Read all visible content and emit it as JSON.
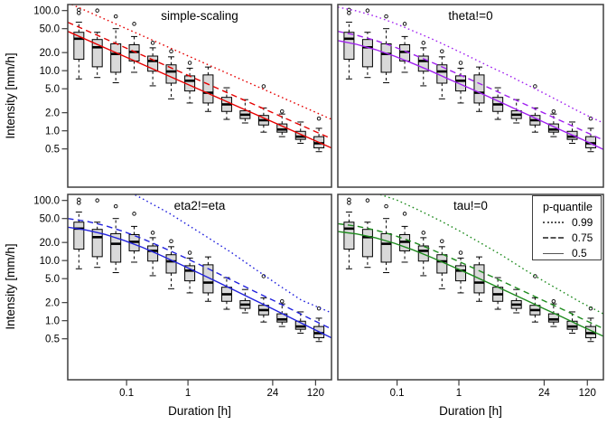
{
  "figure": {
    "background": "#ffffff",
    "frame_color": "#3f3f3f",
    "box_fill": "#d9d9d9",
    "box_stroke": "#000000",
    "legend_line_color": "#555555"
  },
  "axes": {
    "x_label": "Duration [h]",
    "y_label": "Intensity [mm/h]",
    "x_log": true,
    "y_log": true,
    "x_range": [
      0.011,
      218
    ],
    "y_top": 126,
    "x_ticks": [
      {
        "value": 0.1,
        "label": "0.1"
      },
      {
        "value": 1,
        "label": "1"
      },
      {
        "value": 24,
        "label": "24"
      },
      {
        "value": 120,
        "label": "120"
      }
    ],
    "y_ticks": [
      {
        "value": 100,
        "label": "100.0"
      },
      {
        "value": 50,
        "label": "50.0"
      },
      {
        "value": 20,
        "label": "20.0"
      },
      {
        "value": 10,
        "label": "10.0"
      },
      {
        "value": 5,
        "label": "5.0"
      },
      {
        "value": 2,
        "label": "2.0"
      },
      {
        "value": 1,
        "label": "1.0"
      },
      {
        "value": 0.5,
        "label": "0.5"
      }
    ]
  },
  "legend": {
    "title": "p-quantile",
    "entries": [
      {
        "style": "dotted",
        "label": "0.99"
      },
      {
        "style": "dashed",
        "label": "0.75"
      },
      {
        "style": "solid",
        "label": "0.5"
      }
    ]
  },
  "chart_data": {
    "type": "boxplot+line",
    "note": "Four panels share identical empirical boxplot data; each panel shows a different fitted quantile model (p = 0.99 dotted, 0.75 dashed, 0.5 solid).",
    "boxplots": [
      {
        "duration": 0.0167,
        "whisker_low": 7.3,
        "q1": 15.5,
        "median": 34,
        "q3": 43.5,
        "whisker_high": 64,
        "outliers": [
          103,
          91
        ]
      },
      {
        "duration": 0.0333,
        "whisker_low": 7.7,
        "q1": 11.6,
        "median": 24.5,
        "q3": 33,
        "whisker_high": 43.5,
        "outliers": [
          100
        ]
      },
      {
        "duration": 0.0667,
        "whisker_low": 6.3,
        "q1": 9.4,
        "median": 19,
        "q3": 28,
        "whisker_high": 50,
        "outliers": [
          80
        ]
      },
      {
        "duration": 0.133,
        "whisker_low": 9.4,
        "q1": 14.5,
        "median": 20.5,
        "q3": 27,
        "whisker_high": 37,
        "outliers": [
          60
        ]
      },
      {
        "duration": 0.267,
        "whisker_low": 5.6,
        "q1": 9.8,
        "median": 14.5,
        "q3": 17.5,
        "whisker_high": 24,
        "outliers": [
          29
        ]
      },
      {
        "duration": 0.533,
        "whisker_low": 3.4,
        "q1": 6.2,
        "median": 9.7,
        "q3": 12.5,
        "whisker_high": 17,
        "outliers": [
          21
        ]
      },
      {
        "duration": 1.07,
        "whisker_low": 2.9,
        "q1": 4.6,
        "median": 6.8,
        "q3": 8.2,
        "whisker_high": 11,
        "outliers": [
          13.5
        ]
      },
      {
        "duration": 2.13,
        "whisker_low": 2.1,
        "q1": 2.9,
        "median": 4.3,
        "q3": 8.5,
        "whisker_high": 11.5,
        "outliers": []
      },
      {
        "duration": 4.27,
        "whisker_low": 1.55,
        "q1": 2.1,
        "median": 2.75,
        "q3": 3.6,
        "whisker_high": 5.2,
        "outliers": []
      },
      {
        "duration": 8.53,
        "whisker_low": 1.35,
        "q1": 1.6,
        "median": 1.85,
        "q3": 2.15,
        "whisker_high": 3.3,
        "outliers": []
      },
      {
        "duration": 17.1,
        "whisker_low": 0.95,
        "q1": 1.25,
        "median": 1.5,
        "q3": 1.8,
        "whisker_high": 2.4,
        "outliers": [
          5.5
        ]
      },
      {
        "duration": 34.1,
        "whisker_low": 0.8,
        "q1": 0.95,
        "median": 1.05,
        "q3": 1.3,
        "whisker_high": 1.9,
        "outliers": [
          2.1
        ]
      },
      {
        "duration": 68.3,
        "whisker_low": 0.62,
        "q1": 0.72,
        "median": 0.8,
        "q3": 0.98,
        "whisker_high": 1.4,
        "outliers": []
      },
      {
        "duration": 136,
        "whisker_low": 0.45,
        "q1": 0.52,
        "median": 0.62,
        "q3": 0.8,
        "whisker_high": 1.1,
        "outliers": [
          1.6
        ]
      }
    ],
    "panels": [
      {
        "title": "simple-scaling",
        "color": "#e60000",
        "curves": [
          {
            "p": "0.99",
            "style": "dotted",
            "points": [
              [
                0.011,
                135
              ],
              [
                218,
                1.55
              ]
            ]
          },
          {
            "p": "0.75",
            "style": "dashed",
            "points": [
              [
                0.011,
                64
              ],
              [
                218,
                0.74
              ]
            ]
          },
          {
            "p": "0.5",
            "style": "solid",
            "points": [
              [
                0.011,
                45
              ],
              [
                218,
                0.52
              ]
            ]
          }
        ]
      },
      {
        "title": "theta!=0",
        "color": "#a020f0",
        "curves": [
          {
            "p": "0.99",
            "style": "dotted",
            "points": [
              [
                0.011,
                114
              ],
              [
                0.022,
                99
              ],
              [
                0.045,
                80
              ],
              [
                0.09,
                62
              ],
              [
                0.18,
                46
              ],
              [
                0.36,
                34
              ],
              [
                0.72,
                24.5
              ],
              [
                1.5,
                17
              ],
              [
                3,
                12
              ],
              [
                6,
                8.6
              ],
              [
                12,
                6.0
              ],
              [
                24,
                4.2
              ],
              [
                48,
                2.9
              ],
              [
                96,
                2.0
              ],
              [
                218,
                1.35
              ]
            ]
          },
          {
            "p": "0.75",
            "style": "dashed",
            "points": [
              [
                0.011,
                45
              ],
              [
                0.022,
                39
              ],
              [
                0.045,
                31.8
              ],
              [
                0.09,
                24.9
              ],
              [
                0.18,
                18.7
              ],
              [
                0.36,
                13.9
              ],
              [
                0.72,
                10.1
              ],
              [
                1.5,
                7.2
              ],
              [
                3,
                5.25
              ],
              [
                6,
                3.79
              ],
              [
                12,
                2.74
              ],
              [
                24,
                1.97
              ],
              [
                48,
                1.42
              ],
              [
                96,
                1.03
              ],
              [
                218,
                0.7
              ]
            ]
          },
          {
            "p": "0.5",
            "style": "solid",
            "points": [
              [
                0.011,
                31.7
              ],
              [
                0.022,
                27.5
              ],
              [
                0.045,
                22.4
              ],
              [
                0.09,
                17.5
              ],
              [
                0.18,
                13.2
              ],
              [
                0.36,
                9.8
              ],
              [
                0.72,
                7.1
              ],
              [
                1.5,
                5.1
              ],
              [
                3,
                3.7
              ],
              [
                6,
                2.67
              ],
              [
                12,
                1.93
              ],
              [
                24,
                1.39
              ],
              [
                48,
                1.0
              ],
              [
                96,
                0.73
              ],
              [
                218,
                0.49
              ]
            ]
          }
        ]
      },
      {
        "title": "eta2!=eta",
        "color": "#2222dd",
        "curves": [
          {
            "p": "0.99",
            "style": "dotted",
            "points": [
              [
                0.05,
                210
              ],
              [
                0.1,
                148
              ],
              [
                0.22,
                96
              ],
              [
                0.5,
                61
              ],
              [
                1,
                39
              ],
              [
                2,
                25
              ],
              [
                5,
                13.8
              ],
              [
                12,
                7.4
              ],
              [
                30,
                3.9
              ],
              [
                70,
                2.2
              ],
              [
                218,
                1.35
              ]
            ]
          },
          {
            "p": "0.75",
            "style": "dashed",
            "points": [
              [
                0.011,
                50
              ],
              [
                0.022,
                45
              ],
              [
                0.045,
                38
              ],
              [
                0.09,
                30.4
              ],
              [
                0.18,
                23.2
              ],
              [
                0.36,
                17.1
              ],
              [
                0.72,
                12.4
              ],
              [
                1.5,
                8.7
              ],
              [
                3,
                6.2
              ],
              [
                6,
                4.38
              ],
              [
                12,
                3.09
              ],
              [
                24,
                2.2
              ],
              [
                48,
                1.55
              ],
              [
                96,
                1.09
              ],
              [
                218,
                0.73
              ]
            ]
          },
          {
            "p": "0.5",
            "style": "solid",
            "points": [
              [
                0.011,
                35.8
              ],
              [
                0.022,
                32.2
              ],
              [
                0.045,
                27.2
              ],
              [
                0.09,
                21.7
              ],
              [
                0.18,
                16.6
              ],
              [
                0.36,
                12.2
              ],
              [
                0.72,
                8.84
              ],
              [
                1.5,
                6.2
              ],
              [
                3,
                4.41
              ],
              [
                6,
                3.13
              ],
              [
                12,
                2.21
              ],
              [
                24,
                1.57
              ],
              [
                48,
                1.11
              ],
              [
                96,
                0.78
              ],
              [
                218,
                0.52
              ]
            ]
          }
        ]
      },
      {
        "title": "tau!=0",
        "color": "#1e8b1e",
        "curves": [
          {
            "p": "0.99",
            "style": "dotted",
            "points": [
              [
                0.011,
                175
              ],
              [
                0.05,
                128
              ],
              [
                0.1,
                101
              ],
              [
                0.2,
                73
              ],
              [
                0.5,
                46
              ],
              [
                1,
                31.5
              ],
              [
                2,
                21
              ],
              [
                5,
                12.2
              ],
              [
                12,
                6.9
              ],
              [
                24,
                4.5
              ],
              [
                48,
                3.0
              ],
              [
                96,
                2.0
              ],
              [
                218,
                1.3
              ]
            ]
          },
          {
            "p": "0.75",
            "style": "dashed",
            "points": [
              [
                0.011,
                41
              ],
              [
                0.022,
                37.4
              ],
              [
                0.045,
                32.1
              ],
              [
                0.09,
                26.2
              ],
              [
                0.18,
                20.4
              ],
              [
                0.36,
                15.3
              ],
              [
                0.72,
                11.2
              ],
              [
                1.5,
                8.0
              ],
              [
                3,
                5.76
              ],
              [
                6,
                4.16
              ],
              [
                12,
                2.98
              ],
              [
                24,
                2.13
              ],
              [
                48,
                1.54
              ],
              [
                96,
                1.09
              ],
              [
                218,
                0.74
              ]
            ]
          },
          {
            "p": "0.5",
            "style": "solid",
            "points": [
              [
                0.011,
                30.4
              ],
              [
                0.022,
                27.7
              ],
              [
                0.045,
                23.8
              ],
              [
                0.09,
                19.4
              ],
              [
                0.18,
                15.1
              ],
              [
                0.36,
                11.3
              ],
              [
                0.72,
                8.3
              ],
              [
                1.5,
                5.93
              ],
              [
                3,
                4.27
              ],
              [
                6,
                3.08
              ],
              [
                12,
                2.21
              ],
              [
                24,
                1.58
              ],
              [
                48,
                1.14
              ],
              [
                96,
                0.81
              ],
              [
                218,
                0.55
              ]
            ]
          }
        ]
      }
    ]
  }
}
